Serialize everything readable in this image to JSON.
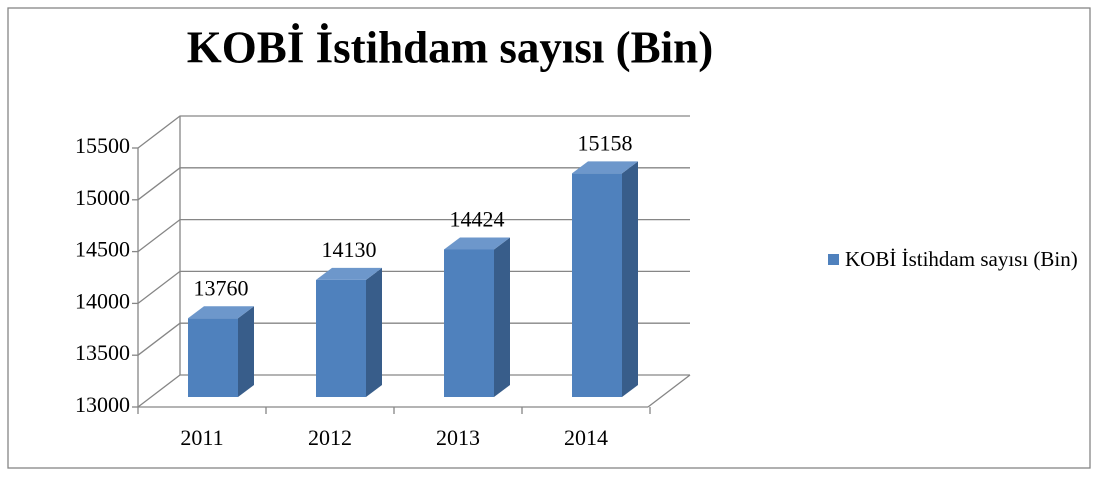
{
  "chart_data": {
    "type": "bar3d",
    "title": "KOBİ İstihdam sayısı (Bin)",
    "categories": [
      "2011",
      "2012",
      "2013",
      "2014"
    ],
    "series": [
      {
        "name": "KOBİ İstihdam sayısı (Bin)",
        "color": "#4f81bd",
        "values": [
          13760,
          14130,
          14424,
          15158
        ]
      }
    ],
    "ylim": [
      13000,
      15500
    ],
    "yticks": [
      13000,
      13500,
      14000,
      14500,
      15000,
      15500
    ],
    "grid": true,
    "legend": "right"
  }
}
